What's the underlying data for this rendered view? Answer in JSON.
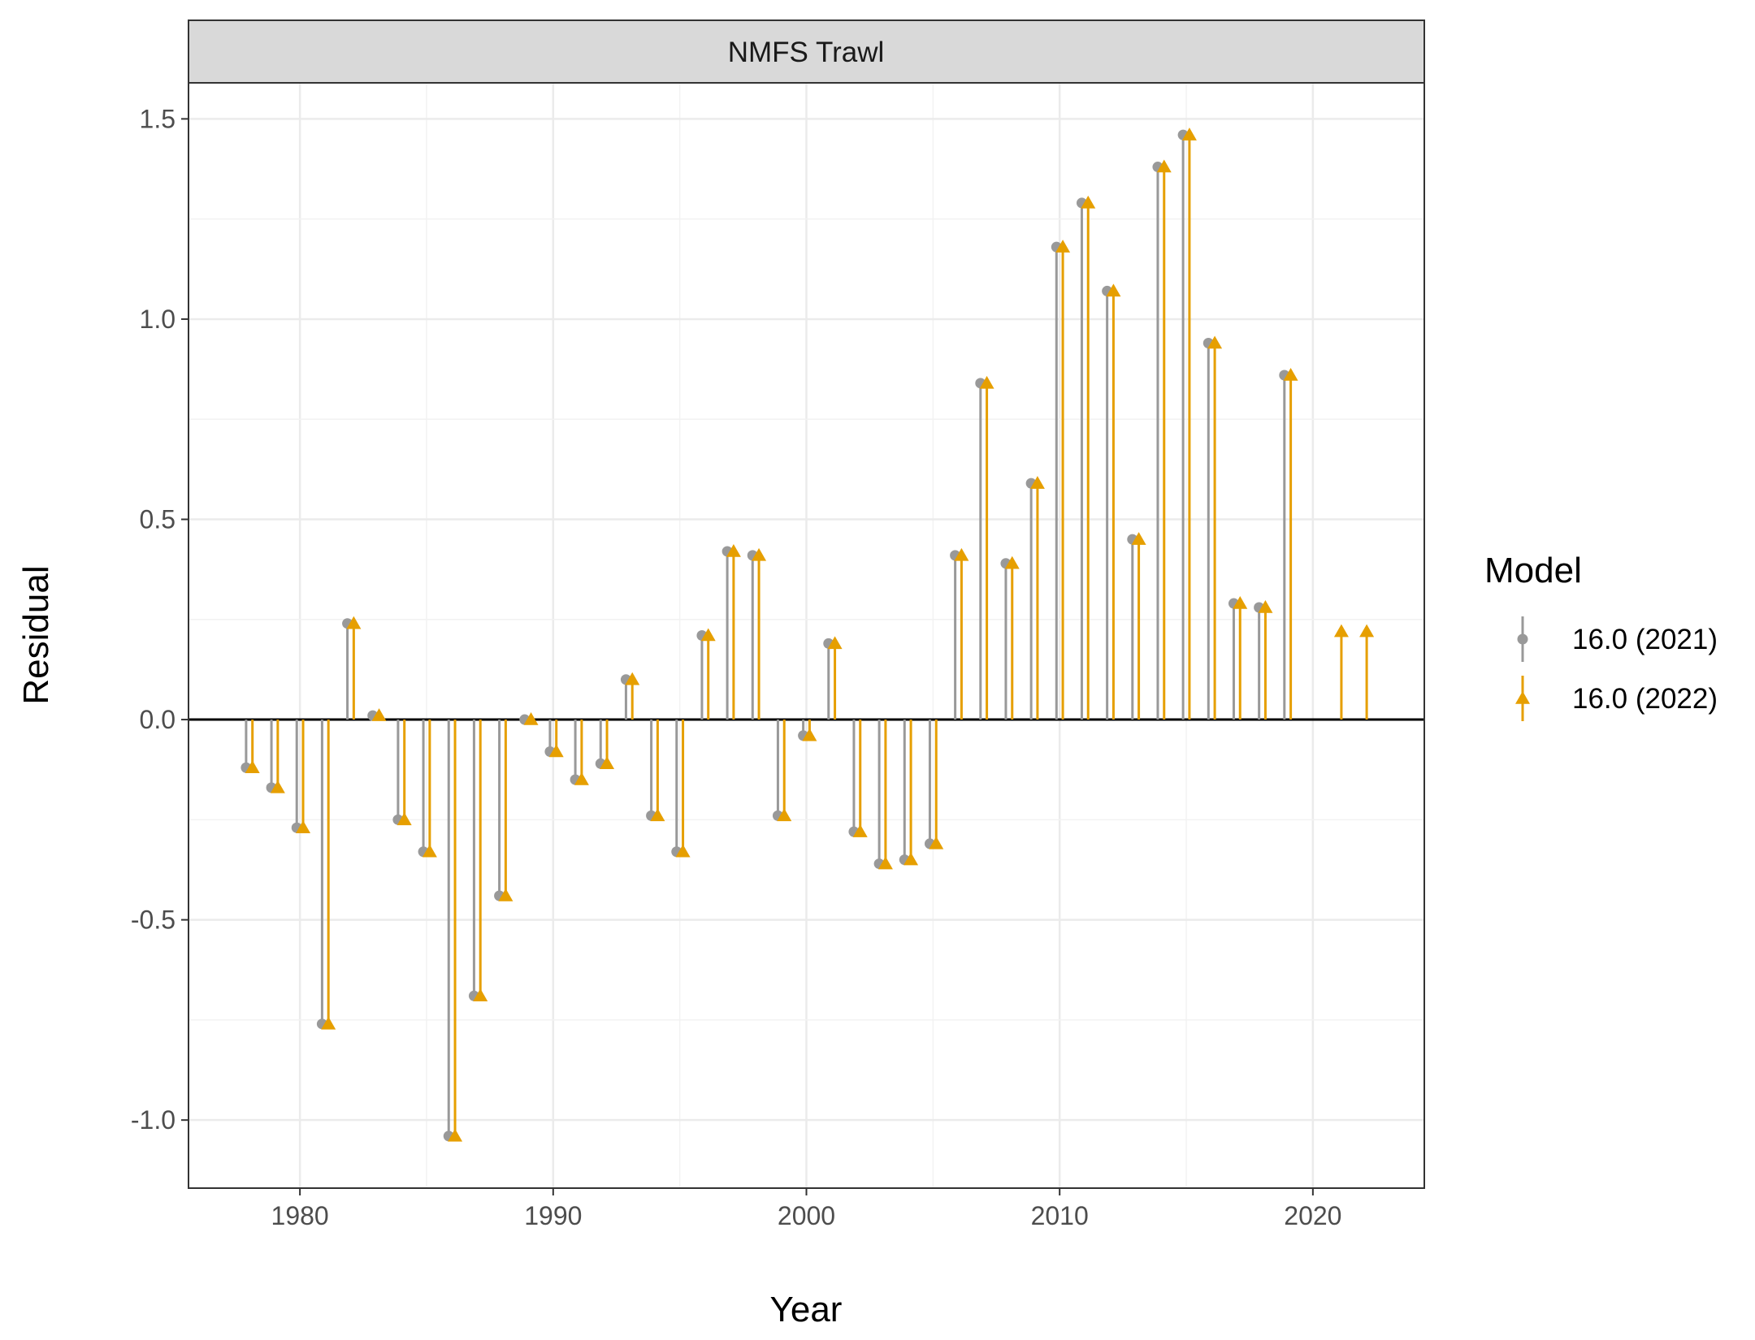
{
  "chart_data": {
    "type": "lollipop",
    "panel_title": "NMFS Trawl",
    "xlabel": "Year",
    "ylabel": "Residual",
    "xlim": [
      1975.6,
      2024.4
    ],
    "ylim": [
      -1.17,
      1.59
    ],
    "x_ticks": [
      1980,
      1990,
      2000,
      2010,
      2020
    ],
    "x_tick_labels": [
      "1980",
      "1990",
      "2000",
      "2010",
      "2020"
    ],
    "y_ticks": [
      -1.0,
      -0.5,
      0.0,
      0.5,
      1.0,
      1.5
    ],
    "y_tick_labels": [
      "-1.0",
      "-0.5",
      "0.0",
      "0.5",
      "1.0",
      "1.5"
    ],
    "grid": true,
    "zero_line": 0,
    "dodge_years": 0.25,
    "legend": {
      "title": "Model",
      "position": "right"
    },
    "series": [
      {
        "name": "16.0 (2021)",
        "color": "#999999",
        "marker": "circle",
        "x": [
          1978,
          1979,
          1980,
          1981,
          1982,
          1983,
          1984,
          1985,
          1986,
          1987,
          1988,
          1989,
          1990,
          1991,
          1992,
          1993,
          1994,
          1995,
          1996,
          1997,
          1998,
          1999,
          2000,
          2001,
          2002,
          2003,
          2004,
          2005,
          2006,
          2007,
          2008,
          2009,
          2010,
          2011,
          2012,
          2013,
          2014,
          2015,
          2016,
          2017,
          2018,
          2019
        ],
        "y": [
          -0.12,
          -0.17,
          -0.27,
          -0.76,
          0.24,
          0.01,
          -0.25,
          -0.33,
          -1.04,
          -0.69,
          -0.44,
          0.0,
          -0.08,
          -0.15,
          -0.11,
          0.1,
          -0.24,
          -0.33,
          0.21,
          0.42,
          0.41,
          -0.24,
          -0.04,
          0.19,
          -0.28,
          -0.36,
          -0.35,
          -0.31,
          0.41,
          0.84,
          0.39,
          0.59,
          1.18,
          1.29,
          1.07,
          0.45,
          1.38,
          1.46,
          0.94,
          0.29,
          0.28,
          0.86
        ]
      },
      {
        "name": "16.0 (2022)",
        "color": "#E69F00",
        "marker": "triangle",
        "x": [
          1978,
          1979,
          1980,
          1981,
          1982,
          1983,
          1984,
          1985,
          1986,
          1987,
          1988,
          1989,
          1990,
          1991,
          1992,
          1993,
          1994,
          1995,
          1996,
          1997,
          1998,
          1999,
          2000,
          2001,
          2002,
          2003,
          2004,
          2005,
          2006,
          2007,
          2008,
          2009,
          2010,
          2011,
          2012,
          2013,
          2014,
          2015,
          2016,
          2017,
          2018,
          2019,
          2021,
          2022
        ],
        "y": [
          -0.12,
          -0.17,
          -0.27,
          -0.76,
          0.24,
          0.01,
          -0.25,
          -0.33,
          -1.04,
          -0.69,
          -0.44,
          0.0,
          -0.08,
          -0.15,
          -0.11,
          0.1,
          -0.24,
          -0.33,
          0.21,
          0.42,
          0.41,
          -0.24,
          -0.04,
          0.19,
          -0.28,
          -0.36,
          -0.35,
          -0.31,
          0.41,
          0.84,
          0.39,
          0.59,
          1.18,
          1.29,
          1.07,
          0.45,
          1.38,
          1.46,
          0.94,
          0.29,
          0.28,
          0.86,
          0.22,
          0.22
        ]
      }
    ]
  }
}
